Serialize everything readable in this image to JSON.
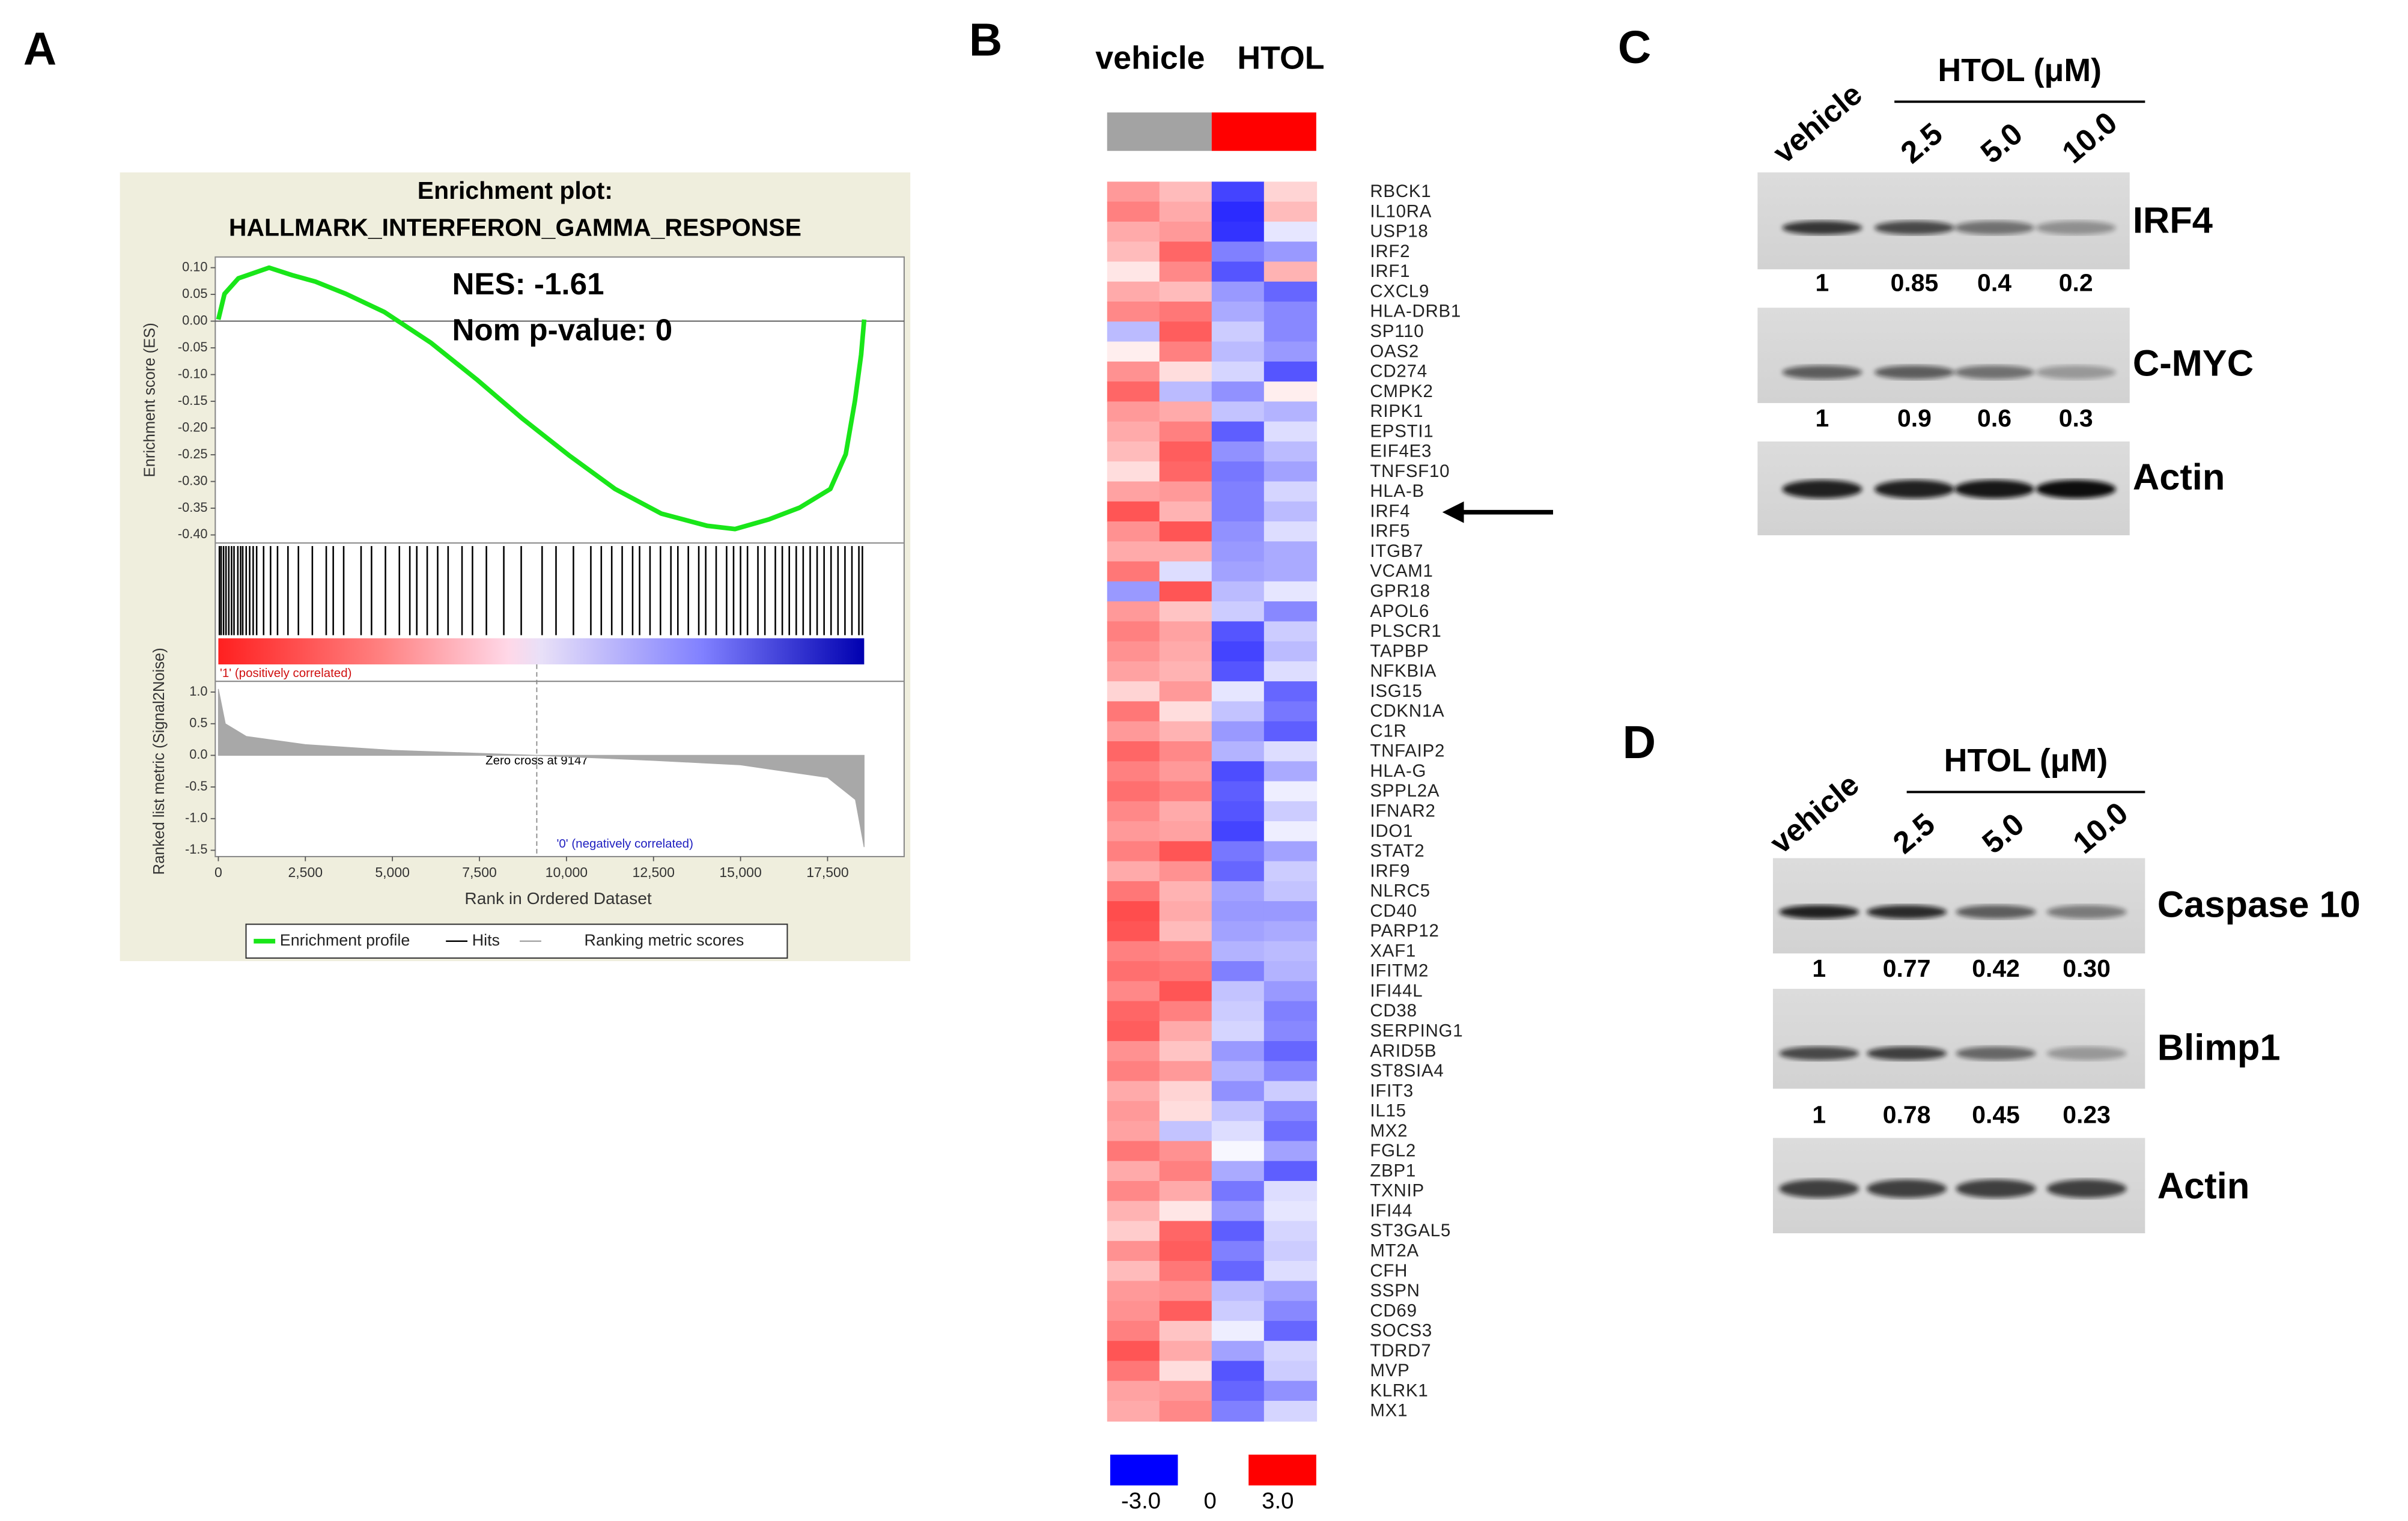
{
  "panel_labels": [
    "A",
    "B",
    "C",
    "D"
  ],
  "chart_data": [
    {
      "type": "gsea",
      "title": [
        "Enrichment plot:",
        "HALLMARK_INTERFERON_GAMMA_RESPONSE"
      ],
      "annotations": [
        "NES: -1.61",
        "Nom p-value: 0"
      ],
      "xlabel": "Rank in Ordered Dataset",
      "ylabel": "Enrichment score (ES)",
      "y2label": "Ranked list metric (Signal2Noise)",
      "xlim": [
        0,
        19700
      ],
      "xticks": [
        0,
        {
          "value": 2500,
          "label": "2,500"
        },
        {
          "value": 5000,
          "label": "5,000"
        },
        {
          "value": 7500,
          "label": "7,500"
        },
        {
          "value": 10000,
          "label": "10,000"
        },
        {
          "value": 12500,
          "label": "12,500"
        },
        {
          "value": 15000,
          "label": "15,000"
        },
        {
          "value": 17500,
          "label": "17,500"
        }
      ],
      "ylim": [
        -0.415,
        0.12
      ],
      "yticks": [
        {
          "value": 0.1,
          "label": "0.10"
        },
        {
          "value": 0.05,
          "label": "0.05"
        },
        {
          "value": 0,
          "label": "0.00"
        },
        {
          "value": -0.05,
          "label": "-0.05"
        },
        {
          "value": -0.1,
          "label": "-0.10"
        },
        {
          "value": -0.15,
          "label": "-0.15"
        },
        {
          "value": -0.2,
          "label": "-0.20"
        },
        {
          "value": -0.25,
          "label": "-0.25"
        },
        {
          "value": -0.3,
          "label": "-0.30"
        },
        {
          "value": -0.35,
          "label": "-0.35"
        },
        {
          "value": -0.4,
          "label": "-0.40"
        }
      ],
      "y2lim": [
        -1.6,
        1.17
      ],
      "y2ticks": [
        {
          "value": 1,
          "label": "1.0"
        },
        {
          "value": 0.5,
          "label": "0.5"
        },
        {
          "value": 0,
          "label": "0.0"
        },
        {
          "value": -0.5,
          "label": "-0.5"
        },
        {
          "value": -1,
          "label": "-1.0"
        },
        {
          "value": -1.5,
          "label": "-1.5"
        }
      ],
      "zero_cross": {
        "label": "Zero cross at 9147",
        "value": 9147
      },
      "pos_label": "'1' (positively correlated)",
      "neg_label": "'0' (negatively correlated)",
      "legend": "bottom",
      "series": [
        {
          "name": "Enrichment profile",
          "color": "#19e619",
          "x": [
            0,
            177,
            574,
            1458,
            2120,
            2783,
            3666,
            4770,
            6095,
            7420,
            8746,
            10071,
            11396,
            12721,
            14046,
            14841,
            15812,
            16696,
            17580,
            18022,
            18287,
            18464,
            18552
          ],
          "values": [
            0.003,
            0.051,
            0.08,
            0.1,
            0.086,
            0.074,
            0.051,
            0.017,
            -0.04,
            -0.109,
            -0.183,
            -0.251,
            -0.314,
            -0.36,
            -0.383,
            -0.389,
            -0.371,
            -0.349,
            -0.314,
            -0.249,
            -0.149,
            -0.063,
            0.003
          ]
        },
        {
          "name": "Hits",
          "color": "#000000",
          "x": [
            30,
            80,
            150,
            220,
            300,
            380,
            450,
            560,
            640,
            700,
            800,
            900,
            1000,
            1100,
            1300,
            1500,
            1700,
            2000,
            2300,
            2700,
            3100,
            3300,
            3600,
            4100,
            4400,
            4800,
            5200,
            5500,
            5700,
            6000,
            6300,
            6600,
            7000,
            7300,
            7700,
            8200,
            8700,
            9300,
            9700,
            10200,
            10700,
            11000,
            11300,
            11600,
            11900,
            12100,
            12400,
            12700,
            13000,
            13200,
            13500,
            13800,
            14000,
            14300,
            14600,
            14800,
            15000,
            15200,
            15500,
            15700,
            16000,
            16200,
            16400,
            16600,
            16800,
            17000,
            17200,
            17400,
            17600,
            17800,
            18000,
            18200,
            18400,
            18500
          ]
        },
        {
          "name": "Ranking metric scores",
          "color": "#a8a8a8",
          "axis": "y2",
          "x": [
            0,
            200,
            800,
            2500,
            5000,
            9147,
            12500,
            15000,
            17500,
            18300,
            18550
          ],
          "values": [
            1.05,
            0.5,
            0.3,
            0.17,
            0.08,
            0,
            -0.08,
            -0.15,
            -0.35,
            -0.7,
            -1.45
          ]
        }
      ]
    },
    {
      "type": "heatmap",
      "columns": [
        "vehicle",
        "HTOL"
      ],
      "group_colors": [
        "#a3a3a3",
        "#ff0000"
      ],
      "rows": [
        "RBCK1",
        "IL10RA",
        "USP18",
        "IRF2",
        "IRF1",
        "CXCL9",
        "HLA-DRB1",
        "SP110",
        "OAS2",
        "CD274",
        "CMPK2",
        "RIPK1",
        "EPSTI1",
        "EIF4E3",
        "TNFSF10",
        "HLA-B",
        "IRF4",
        "IRF5",
        "ITGB7",
        "VCAM1",
        "GPR18",
        "APOL6",
        "PLSCR1",
        "TAPBP",
        "NFKBIA",
        "ISG15",
        "CDKN1A",
        "C1R",
        "TNFAIP2",
        "HLA-G",
        "SPPL2A",
        "IFNAR2",
        "IDO1",
        "STAT2",
        "IRF9",
        "NLRC5",
        "CD40",
        "PARP12",
        "XAF1",
        "IFITM2",
        "IFI44L",
        "CD38",
        "SERPING1",
        "ARID5B",
        "ST8SIA4",
        "IFIT3",
        "IL15",
        "MX2",
        "FGL2",
        "ZBP1",
        "TXNIP",
        "IFI44",
        "ST3GAL5",
        "MT2A",
        "CFH",
        "SSPN",
        "CD69",
        "SOCS3",
        "TDRD7",
        "MVP",
        "KLRK1",
        "MX1"
      ],
      "values": [
        [
          1.2,
          0.8,
          -2.2,
          0.5
        ],
        [
          1.5,
          1.0,
          -2.5,
          0.8
        ],
        [
          1.0,
          1.2,
          -2.4,
          -0.3
        ],
        [
          0.8,
          1.8,
          -1.5,
          -1.2
        ],
        [
          0.3,
          1.4,
          -2.0,
          0.9
        ],
        [
          1.0,
          0.8,
          -1.2,
          -1.8
        ],
        [
          1.4,
          1.6,
          -1.0,
          -1.4
        ],
        [
          -0.8,
          1.9,
          -0.6,
          -1.4
        ],
        [
          0.2,
          1.5,
          -0.8,
          -1.2
        ],
        [
          1.3,
          0.4,
          -0.5,
          -2.0
        ],
        [
          1.8,
          -0.8,
          -1.3,
          0.2
        ],
        [
          1.2,
          1.0,
          -0.7,
          -0.9
        ],
        [
          1.0,
          1.5,
          -1.9,
          -0.4
        ],
        [
          0.8,
          1.9,
          -1.3,
          -0.8
        ],
        [
          0.4,
          1.8,
          -1.6,
          -1.1
        ],
        [
          1.1,
          1.2,
          -1.5,
          -0.5
        ],
        [
          2.0,
          0.9,
          -1.5,
          -0.8
        ],
        [
          1.3,
          2.0,
          -1.3,
          -0.4
        ],
        [
          1.0,
          1.0,
          -1.2,
          -1.0
        ],
        [
          1.6,
          -0.4,
          -1.1,
          -1.0
        ],
        [
          -1.2,
          2.0,
          -0.8,
          -0.3
        ],
        [
          1.2,
          0.7,
          -0.6,
          -1.4
        ],
        [
          1.5,
          1.1,
          -2.0,
          -0.6
        ],
        [
          1.3,
          1.0,
          -2.2,
          -0.8
        ],
        [
          1.1,
          0.9,
          -2.0,
          -0.4
        ],
        [
          0.5,
          1.2,
          -0.3,
          -1.8
        ],
        [
          1.6,
          0.4,
          -0.7,
          -1.6
        ],
        [
          1.2,
          0.9,
          -1.2,
          -1.9
        ],
        [
          1.8,
          1.4,
          -0.9,
          -0.4
        ],
        [
          1.5,
          1.2,
          -2.1,
          -1.0
        ],
        [
          1.7,
          1.5,
          -1.9,
          -0.2
        ],
        [
          1.4,
          1.0,
          -2.0,
          -0.6
        ],
        [
          1.2,
          1.1,
          -2.2,
          -0.2
        ],
        [
          1.5,
          2.0,
          -1.6,
          -1.1
        ],
        [
          1.0,
          1.3,
          -1.8,
          -0.6
        ],
        [
          1.6,
          0.9,
          -1.1,
          -0.7
        ],
        [
          2.1,
          1.0,
          -1.2,
          -1.2
        ],
        [
          2.0,
          0.8,
          -1.1,
          -1.0
        ],
        [
          1.5,
          1.4,
          -0.9,
          -0.8
        ],
        [
          1.7,
          1.6,
          -1.5,
          -0.9
        ],
        [
          1.4,
          2.0,
          -0.7,
          -1.2
        ],
        [
          1.8,
          1.5,
          -0.6,
          -1.5
        ],
        [
          1.9,
          1.0,
          -0.5,
          -1.4
        ],
        [
          1.3,
          0.7,
          -1.2,
          -1.8
        ],
        [
          1.5,
          1.2,
          -0.9,
          -1.4
        ],
        [
          1.0,
          0.5,
          -1.3,
          -0.6
        ],
        [
          1.2,
          0.4,
          -0.7,
          -1.4
        ],
        [
          1.1,
          -0.7,
          -0.4,
          -1.7
        ],
        [
          1.6,
          1.3,
          -0.1,
          -1.1
        ],
        [
          1.0,
          1.5,
          -1.0,
          -1.9
        ],
        [
          1.4,
          1.0,
          -1.6,
          -0.4
        ],
        [
          0.9,
          0.3,
          -1.2,
          -0.3
        ],
        [
          0.6,
          1.8,
          -1.9,
          -0.5
        ],
        [
          1.3,
          1.9,
          -1.5,
          -0.6
        ],
        [
          0.8,
          1.6,
          -1.8,
          -0.4
        ],
        [
          1.2,
          1.3,
          -0.8,
          -1.1
        ],
        [
          1.3,
          1.9,
          -0.6,
          -1.4
        ],
        [
          1.5,
          0.7,
          -0.2,
          -1.8
        ],
        [
          2.0,
          1.0,
          -1.1,
          -0.5
        ],
        [
          1.6,
          0.4,
          -2.0,
          -0.6
        ],
        [
          1.1,
          1.2,
          -1.8,
          -1.3
        ],
        [
          1.0,
          1.4,
          -1.5,
          -0.5
        ]
      ],
      "clim": [
        -3,
        3
      ],
      "cticks": [
        {
          "value": -3,
          "label": "-3.0"
        },
        0,
        {
          "value": 3,
          "label": "3.0"
        }
      ],
      "colors": [
        "#0000ff",
        "#ffffff",
        "#ff0000"
      ]
    }
  ],
  "blots": [
    {
      "group": "HTOL (μM)",
      "lanes": [
        "vehicle",
        "2.5",
        "5.0",
        "10.0"
      ],
      "bands": [
        {
          "name": "IRF4",
          "quant": [
            "1",
            "0.85",
            "0.4",
            "0.2"
          ]
        },
        {
          "name": "C-MYC",
          "quant": [
            "1",
            "0.9",
            "0.6",
            "0.3"
          ]
        },
        {
          "name": "Actin"
        }
      ]
    },
    {
      "group": "HTOL (μM)",
      "lanes": [
        "vehicle",
        "2.5",
        "5.0",
        "10.0"
      ],
      "bands": [
        {
          "name": "Caspase 10",
          "quant": [
            "1",
            "0.77",
            "0.42",
            "0.30"
          ]
        },
        {
          "name": "Blimp1",
          "quant": [
            "1",
            "0.78",
            "0.45",
            "0.23"
          ]
        },
        {
          "name": "Actin"
        }
      ]
    }
  ]
}
